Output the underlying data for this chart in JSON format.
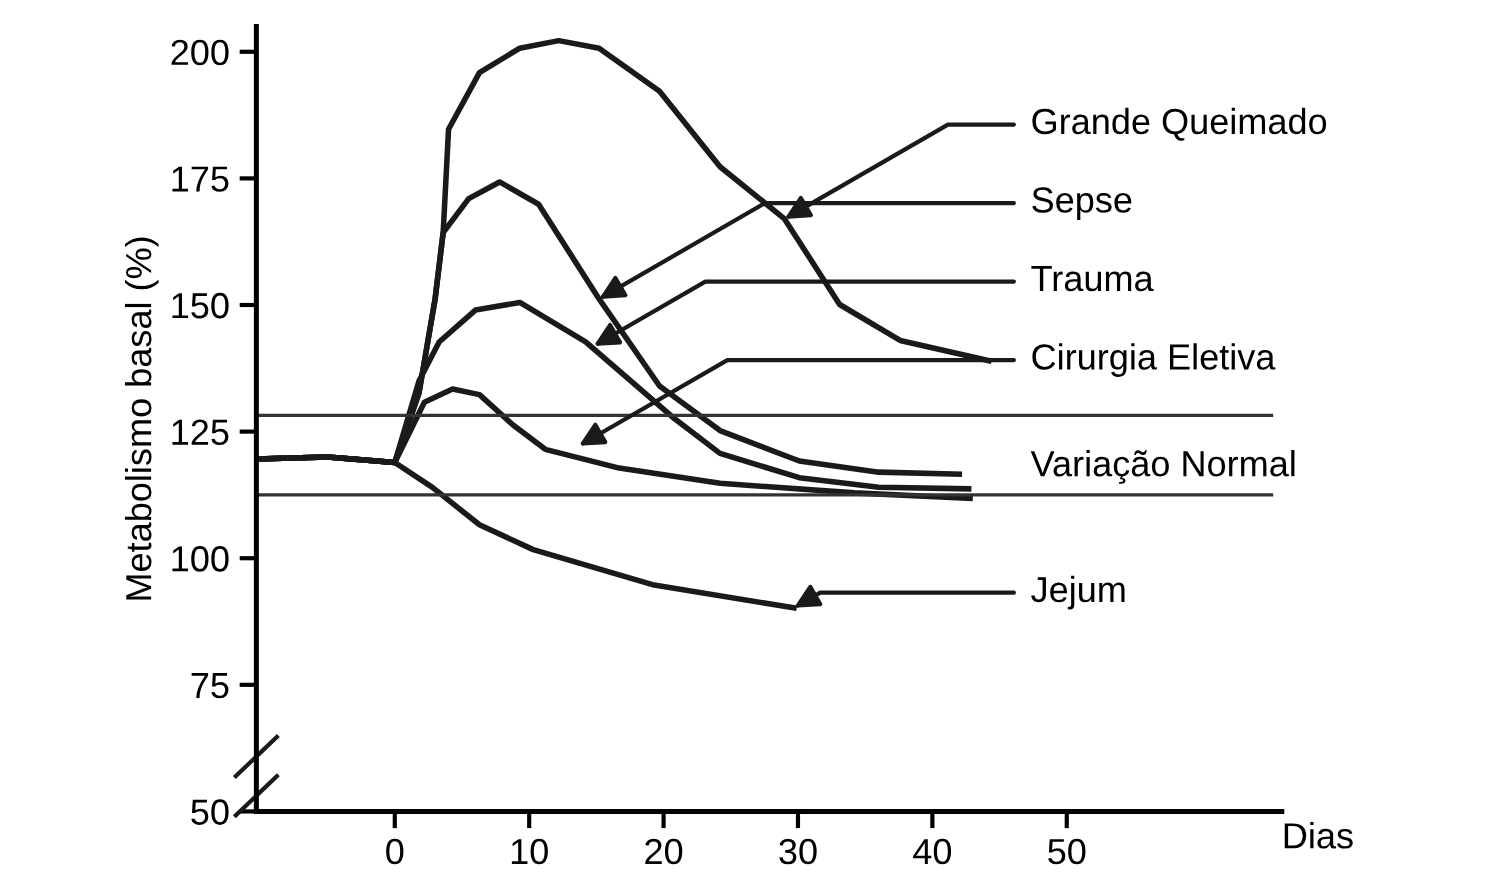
{
  "chart_data": {
    "type": "line",
    "xlabel": "Dias",
    "ylabel": "Metabolismo basal (%)",
    "xlim": [
      -10.3,
      66
    ],
    "xticks": [
      0,
      10,
      20,
      30,
      40,
      50
    ],
    "ylim": [
      50,
      205
    ],
    "yticks": [
      50,
      75,
      100,
      125,
      150,
      175,
      200
    ],
    "grid": false,
    "marker": "none",
    "line_style": "solid",
    "series": [
      {
        "color": "#1a1a1a",
        "x": [
          -10.3,
          -5,
          0,
          1.8,
          3,
          3.6,
          4,
          6.3,
          9.3,
          12.2,
          15.2,
          19.7,
          24.2,
          29,
          33.1,
          37.6,
          44.2
        ],
        "values": [
          119.6,
          120,
          118.9,
          132.6,
          151.2,
          164.3,
          184.7,
          195.9,
          200.7,
          202.2,
          200.7,
          192.2,
          177.3,
          167,
          150.1,
          143,
          139
        ]
      },
      {
        "color": "#1a1a1a",
        "x": [
          -10.3,
          -5,
          0,
          1.8,
          3,
          3.6,
          5.5,
          7.8,
          10.7,
          15.2,
          19.7,
          24.2,
          30.1,
          36,
          42
        ],
        "values": [
          119.6,
          120,
          118.9,
          132.6,
          151.2,
          164.3,
          171,
          174.3,
          169.9,
          151.2,
          134,
          125.2,
          119.2,
          117,
          116.6
        ]
      },
      {
        "color": "#1a1a1a",
        "x": [
          -10.3,
          -5,
          0,
          1.8,
          3.3,
          6,
          9.3,
          14.2,
          20.7,
          24.2,
          30.1,
          36,
          42.7
        ],
        "values": [
          119.6,
          120,
          118.9,
          135,
          142.7,
          149,
          150.5,
          142.7,
          127.8,
          120.7,
          115.9,
          114,
          113.7
        ]
      },
      {
        "color": "#1a1a1a",
        "x": [
          -10.3,
          -5,
          0,
          2.2,
          4.3,
          6.3,
          8.8,
          11.2,
          16.7,
          24.2,
          34.2,
          42.8
        ],
        "values": [
          119.6,
          120,
          118.9,
          130.8,
          133.4,
          132.3,
          126.3,
          121.5,
          117.8,
          114.8,
          112.9,
          111.8
        ]
      },
      {
        "color": "#1a1a1a",
        "x": [
          -10.3,
          -5,
          0,
          2.8,
          6.3,
          10.3,
          19.3,
          29.7
        ],
        "values": [
          119.6,
          120,
          118.9,
          114,
          106.6,
          101.7,
          94.7,
          90.2
        ]
      }
    ],
    "ref_lines": [
      {
        "axis": "y",
        "value": 128.2,
        "color": "#333333"
      },
      {
        "axis": "y",
        "value": 112.5,
        "label": "Variação Normal",
        "color": "#333333"
      }
    ],
    "annotations": [
      {
        "text": "Grande Queimado",
        "x": 29,
        "y": 167
      },
      {
        "text": "Sepse",
        "x": 15.2,
        "y": 151.2
      },
      {
        "text": "Trauma",
        "x": 14.8,
        "y": 141.9
      },
      {
        "text": "Cirurgia Eletiva",
        "x": 13.7,
        "y": 122.2
      },
      {
        "text": "Jejum",
        "x": 29.7,
        "y": 90.2
      }
    ]
  }
}
